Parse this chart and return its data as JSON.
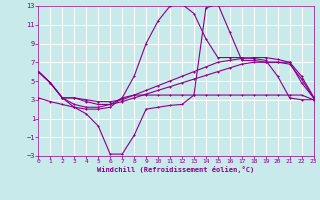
{
  "xlabel": "Windchill (Refroidissement éolien,°C)",
  "background_color": "#c8eaea",
  "grid_color": "#b0d8d8",
  "line_color": "#880088",
  "xmin": 0,
  "xmax": 23,
  "ymin": -3,
  "ymax": 13,
  "yticks": [
    -3,
    -1,
    1,
    3,
    5,
    7,
    9,
    11,
    13
  ],
  "xticks": [
    0,
    1,
    2,
    3,
    4,
    5,
    6,
    7,
    8,
    9,
    10,
    11,
    12,
    13,
    14,
    15,
    16,
    17,
    18,
    19,
    20,
    21,
    22,
    23
  ],
  "line1_x": [
    0,
    1,
    2,
    3,
    4,
    5,
    6,
    7,
    8,
    9,
    10,
    11,
    12,
    13,
    14,
    15,
    16,
    17,
    18,
    19,
    20,
    21,
    22,
    23
  ],
  "line1_y": [
    6.0,
    4.8,
    3.2,
    3.2,
    2.8,
    2.5,
    2.5,
    2.8,
    3.2,
    3.6,
    4.0,
    4.4,
    4.8,
    5.2,
    5.6,
    6.0,
    6.4,
    6.8,
    7.0,
    7.0,
    7.0,
    6.8,
    5.2,
    3.2
  ],
  "line2_x": [
    0,
    1,
    2,
    3,
    4,
    5,
    6,
    7,
    8,
    9,
    10,
    11,
    12,
    13,
    14,
    15,
    16,
    17,
    18,
    19,
    20,
    21,
    22,
    23
  ],
  "line2_y": [
    6.0,
    4.8,
    3.2,
    3.2,
    3.0,
    2.8,
    2.8,
    3.0,
    3.5,
    4.0,
    4.5,
    5.0,
    5.5,
    6.0,
    6.5,
    7.0,
    7.2,
    7.4,
    7.5,
    7.5,
    7.3,
    7.0,
    5.5,
    3.3
  ],
  "line3_x": [
    0,
    1,
    2,
    3,
    4,
    5,
    6,
    7,
    8,
    9,
    10,
    11,
    12,
    13,
    14,
    15,
    16,
    17,
    18,
    19,
    20,
    21,
    22,
    23
  ],
  "line3_y": [
    6.0,
    4.8,
    3.2,
    2.5,
    2.2,
    2.2,
    2.5,
    3.2,
    5.5,
    9.0,
    11.4,
    13.0,
    13.2,
    12.2,
    9.5,
    7.5,
    7.5,
    7.5,
    7.4,
    7.2,
    5.5,
    3.2,
    3.0,
    3.0
  ],
  "line4_x": [
    0,
    1,
    2,
    3,
    4,
    5,
    6,
    7,
    8,
    9,
    10,
    11,
    12,
    13,
    14,
    15,
    16,
    17,
    18,
    19,
    20,
    21,
    22,
    23
  ],
  "line4_y": [
    6.0,
    4.8,
    3.2,
    2.2,
    2.0,
    2.0,
    2.2,
    3.2,
    3.5,
    3.5,
    3.5,
    3.5,
    3.5,
    3.5,
    3.5,
    3.5,
    3.5,
    3.5,
    3.5,
    3.5,
    3.5,
    3.5,
    3.5,
    3.0
  ],
  "line5_x": [
    0,
    1,
    2,
    3,
    4,
    5,
    6,
    7,
    8,
    9,
    10,
    11,
    12,
    13,
    14,
    15,
    16,
    17,
    18,
    19,
    20,
    21,
    22,
    23
  ],
  "line5_y": [
    3.2,
    2.8,
    2.5,
    2.2,
    1.5,
    0.2,
    -2.8,
    -2.8,
    -0.8,
    2.0,
    2.2,
    2.4,
    2.5,
    3.5,
    12.8,
    13.2,
    10.2,
    7.2,
    7.2,
    7.0,
    7.0,
    7.0,
    4.8,
    3.2
  ]
}
